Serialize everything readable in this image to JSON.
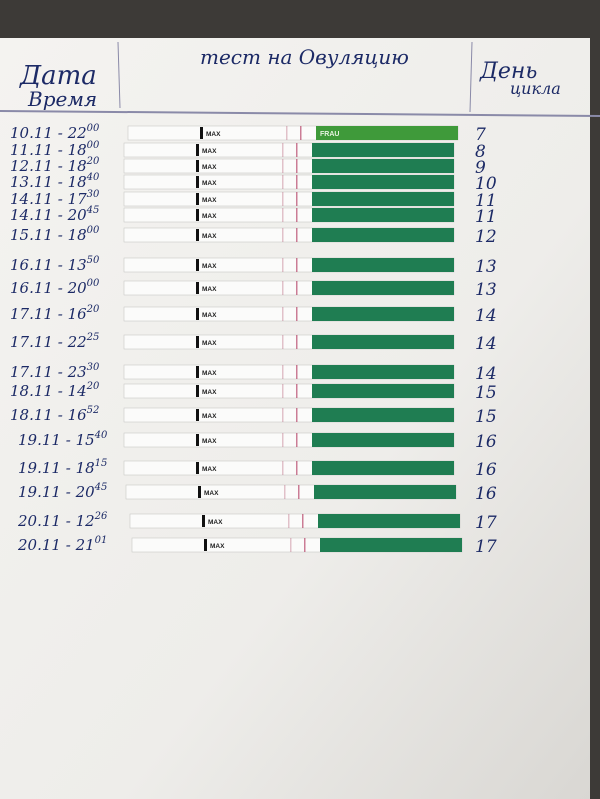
{
  "header": {
    "date_time": [
      "Дата",
      "Время"
    ],
    "title": "тест на Овуляцию",
    "cycle_day": [
      "День",
      "цикла"
    ]
  },
  "strip": {
    "label": "MAX",
    "brand": "FRAU"
  },
  "rows": [
    {
      "date": "10.11",
      "hour": "22",
      "minutes": "00",
      "day": "7"
    },
    {
      "date": "11.11",
      "hour": "18",
      "minutes": "00",
      "day": "8"
    },
    {
      "date": "12.11",
      "hour": "18",
      "minutes": "20",
      "day": "9"
    },
    {
      "date": "13.11",
      "hour": "18",
      "minutes": "40",
      "day": "10"
    },
    {
      "date": "14.11",
      "hour": "17",
      "minutes": "30",
      "day": "11"
    },
    {
      "date": "14.11",
      "hour": "20",
      "minutes": "45",
      "day": "11"
    },
    {
      "date": "15.11",
      "hour": "18",
      "minutes": "00",
      "day": "12"
    },
    {
      "date": "16.11",
      "hour": "13",
      "minutes": "50",
      "day": "13"
    },
    {
      "date": "16.11",
      "hour": "20",
      "minutes": "00",
      "day": "13"
    },
    {
      "date": "17.11",
      "hour": "16",
      "minutes": "20",
      "day": "14"
    },
    {
      "date": "17.11",
      "hour": "22",
      "minutes": "25",
      "day": "14"
    },
    {
      "date": "17.11",
      "hour": "23",
      "minutes": "30",
      "day": "14"
    },
    {
      "date": "18.11",
      "hour": "14",
      "minutes": "20",
      "day": "15"
    },
    {
      "date": "18.11",
      "hour": "16",
      "minutes": "52",
      "day": "15"
    },
    {
      "date": "19.11",
      "hour": "15",
      "minutes": "40",
      "day": "16"
    },
    {
      "date": "19.11",
      "hour": "18",
      "minutes": "15",
      "day": "16"
    },
    {
      "date": "19.11",
      "hour": "20",
      "minutes": "45",
      "day": "16"
    },
    {
      "date": "20.11",
      "hour": "12",
      "minutes": "26",
      "day": "17"
    },
    {
      "date": "20.11",
      "hour": "21",
      "minutes": "01",
      "day": "17"
    }
  ]
}
